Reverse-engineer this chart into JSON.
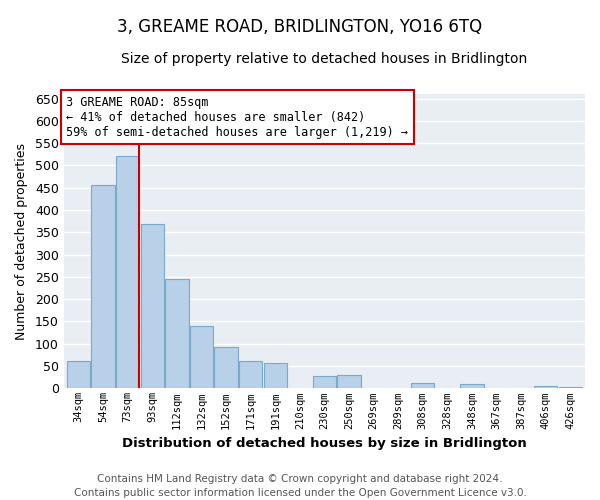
{
  "title": "3, GREAME ROAD, BRIDLINGTON, YO16 6TQ",
  "subtitle": "Size of property relative to detached houses in Bridlington",
  "xlabel": "Distribution of detached houses by size in Bridlington",
  "ylabel": "Number of detached properties",
  "bar_labels": [
    "34sqm",
    "54sqm",
    "73sqm",
    "93sqm",
    "112sqm",
    "132sqm",
    "152sqm",
    "171sqm",
    "191sqm",
    "210sqm",
    "230sqm",
    "250sqm",
    "269sqm",
    "289sqm",
    "308sqm",
    "328sqm",
    "348sqm",
    "367sqm",
    "387sqm",
    "406sqm",
    "426sqm"
  ],
  "bar_values": [
    62,
    456,
    521,
    368,
    246,
    141,
    93,
    61,
    57,
    0,
    28,
    29,
    0,
    0,
    13,
    0,
    10,
    0,
    0,
    5,
    3
  ],
  "bar_color": "#b8d0e8",
  "bar_edge_color": "#7aaac8",
  "ylim": [
    0,
    660
  ],
  "yticks": [
    0,
    50,
    100,
    150,
    200,
    250,
    300,
    350,
    400,
    450,
    500,
    550,
    600,
    650
  ],
  "vertical_line_color": "#cc0000",
  "annotation_box_text": "3 GREAME ROAD: 85sqm\n← 41% of detached houses are smaller (842)\n59% of semi-detached houses are larger (1,219) →",
  "annotation_box_facecolor": "white",
  "annotation_box_edgecolor": "#cc0000",
  "footer_text": "Contains HM Land Registry data © Crown copyright and database right 2024.\nContains public sector information licensed under the Open Government Licence v3.0.",
  "bg_color": "#e8eef4",
  "plot_bg_color": "#e8eef4",
  "grid_color": "white",
  "title_fontsize": 12,
  "subtitle_fontsize": 10,
  "footer_fontsize": 7.5
}
